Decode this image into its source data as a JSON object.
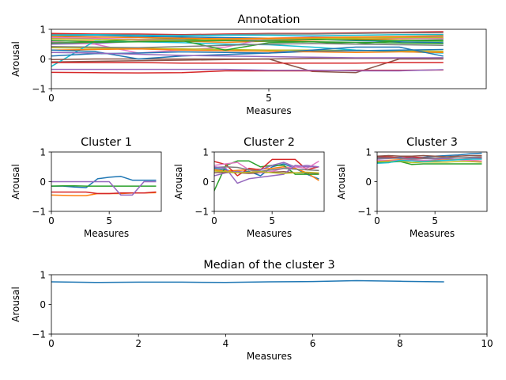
{
  "chart_data": [
    {
      "id": "annotation",
      "type": "line",
      "title": "Annotation",
      "xlabel": "Measures",
      "ylabel": "Arousal",
      "xlim": [
        0,
        10
      ],
      "ylim": [
        -1,
        1
      ],
      "xticks": [
        0,
        5
      ],
      "yticks": [
        -1,
        0,
        1
      ],
      "x": [
        0,
        1,
        2,
        3,
        4,
        5,
        6,
        7,
        8,
        9
      ],
      "series": [
        {
          "color": "#1f77b4",
          "values": [
            0.78,
            0.8,
            0.76,
            0.74,
            0.72,
            0.7,
            0.66,
            0.62,
            0.58,
            0.55
          ]
        },
        {
          "color": "#ff7f0e",
          "values": [
            0.62,
            0.6,
            0.58,
            0.6,
            0.56,
            0.6,
            0.64,
            0.66,
            0.68,
            0.7
          ]
        },
        {
          "color": "#2ca02c",
          "values": [
            0.7,
            0.68,
            0.66,
            0.68,
            0.62,
            0.64,
            0.66,
            0.64,
            0.62,
            0.6
          ]
        },
        {
          "color": "#d62728",
          "values": [
            0.86,
            0.84,
            0.84,
            0.82,
            0.84,
            0.86,
            0.86,
            0.88,
            0.9,
            0.92
          ]
        },
        {
          "color": "#9467bd",
          "values": [
            0.5,
            0.52,
            0.6,
            0.62,
            0.66,
            0.68,
            0.7,
            0.72,
            0.74,
            0.76
          ]
        },
        {
          "color": "#8c564b",
          "values": [
            -0.1,
            -0.08,
            -0.06,
            -0.04,
            -0.02,
            0.0,
            -0.42,
            -0.46,
            0.0,
            0.0
          ]
        },
        {
          "color": "#e377c2",
          "values": [
            0.58,
            0.5,
            0.2,
            0.3,
            0.4,
            0.7,
            0.74,
            0.72,
            0.7,
            0.68
          ]
        },
        {
          "color": "#7f7f7f",
          "values": [
            0.82,
            0.82,
            0.8,
            0.8,
            0.82,
            0.84,
            0.84,
            0.86,
            0.88,
            0.88
          ]
        },
        {
          "color": "#bcbd22",
          "values": [
            0.38,
            0.36,
            0.36,
            0.34,
            0.32,
            0.3,
            0.3,
            0.28,
            0.28,
            0.26
          ]
        },
        {
          "color": "#17becf",
          "values": [
            -0.25,
            0.6,
            0.58,
            0.55,
            0.5,
            0.48,
            0.4,
            0.3,
            0.25,
            0.2
          ]
        },
        {
          "color": "#1f77b4",
          "values": [
            0.1,
            0.18,
            0.2,
            0.24,
            0.22,
            0.2,
            0.26,
            0.28,
            0.3,
            0.32
          ]
        },
        {
          "color": "#ff7f0e",
          "values": [
            0.3,
            0.32,
            0.34,
            0.3,
            0.28,
            0.26,
            0.24,
            0.22,
            0.24,
            0.22
          ]
        },
        {
          "color": "#2ca02c",
          "values": [
            0.62,
            0.58,
            0.66,
            0.62,
            0.3,
            0.55,
            0.58,
            0.5,
            0.62,
            0.64
          ]
        },
        {
          "color": "#d62728",
          "values": [
            -0.45,
            -0.46,
            -0.47,
            -0.46,
            -0.4,
            -0.4,
            -0.4,
            -0.38,
            -0.38,
            -0.37
          ]
        },
        {
          "color": "#9467bd",
          "values": [
            -0.35,
            -0.35,
            -0.35,
            -0.35,
            -0.35,
            -0.38,
            -0.38,
            -0.4,
            -0.4,
            -0.36
          ]
        },
        {
          "color": "#8c564b",
          "values": [
            -0.02,
            0.0,
            0.0,
            0.0,
            0.0,
            0.0,
            0.02,
            0.02,
            0.02,
            0.04
          ]
        },
        {
          "color": "#e377c2",
          "values": [
            0.72,
            0.7,
            0.66,
            0.64,
            0.62,
            0.66,
            0.7,
            0.72,
            0.72,
            0.7
          ]
        },
        {
          "color": "#7f7f7f",
          "values": [
            0.42,
            0.4,
            0.38,
            0.42,
            0.46,
            0.5,
            0.52,
            0.5,
            0.48,
            0.46
          ]
        },
        {
          "color": "#bcbd22",
          "values": [
            0.68,
            0.66,
            0.64,
            0.62,
            0.66,
            0.68,
            0.7,
            0.7,
            0.72,
            0.72
          ]
        },
        {
          "color": "#17becf",
          "values": [
            0.8,
            0.82,
            0.8,
            0.78,
            0.8,
            0.8,
            0.78,
            0.8,
            0.82,
            0.82
          ]
        },
        {
          "color": "#1f77b4",
          "values": [
            0.3,
            0.25,
            0.0,
            0.1,
            0.15,
            0.2,
            0.3,
            0.4,
            0.4,
            0.1
          ]
        },
        {
          "color": "#ff7f0e",
          "values": [
            0.76,
            0.74,
            0.72,
            0.7,
            0.68,
            0.7,
            0.72,
            0.74,
            0.76,
            0.78
          ]
        },
        {
          "color": "#2ca02c",
          "values": [
            0.54,
            0.56,
            0.58,
            0.6,
            0.62,
            0.6,
            0.58,
            0.56,
            0.54,
            0.52
          ]
        },
        {
          "color": "#d62728",
          "values": [
            -0.12,
            -0.12,
            -0.12,
            -0.14,
            -0.14,
            -0.14,
            -0.14,
            -0.14,
            -0.12,
            -0.12
          ]
        },
        {
          "color": "#9467bd",
          "values": [
            0.22,
            0.2,
            0.16,
            0.12,
            0.1,
            0.08,
            0.06,
            0.04,
            0.04,
            0.04
          ]
        }
      ]
    },
    {
      "id": "cluster1",
      "type": "line",
      "title": "Cluster 1",
      "xlabel": "Measures",
      "ylabel": "Arousal",
      "xlim": [
        0,
        9.5
      ],
      "ylim": [
        -1,
        1
      ],
      "xticks": [
        0,
        5
      ],
      "yticks": [
        -1,
        0,
        1
      ],
      "x": [
        0,
        1,
        2,
        3,
        4,
        5,
        6,
        7,
        8,
        9
      ],
      "series": [
        {
          "color": "#1f77b4",
          "values": [
            -0.15,
            -0.15,
            -0.18,
            -0.2,
            0.1,
            0.15,
            0.18,
            0.05,
            0.05,
            0.05
          ]
        },
        {
          "color": "#ff7f0e",
          "values": [
            -0.45,
            -0.46,
            -0.47,
            -0.47,
            -0.4,
            -0.4,
            -0.4,
            -0.38,
            -0.38,
            -0.37
          ]
        },
        {
          "color": "#2ca02c",
          "values": [
            -0.15,
            -0.14,
            -0.14,
            -0.15,
            -0.15,
            -0.15,
            -0.15,
            -0.15,
            -0.15,
            -0.15
          ]
        },
        {
          "color": "#d62728",
          "values": [
            -0.35,
            -0.35,
            -0.35,
            -0.35,
            -0.4,
            -0.4,
            -0.38,
            -0.38,
            -0.38,
            -0.35
          ]
        },
        {
          "color": "#9467bd",
          "values": [
            0.0,
            0.0,
            0.0,
            0.0,
            0.0,
            0.0,
            -0.45,
            -0.45,
            0.0,
            0.0
          ]
        }
      ]
    },
    {
      "id": "cluster2",
      "type": "line",
      "title": "Cluster 2",
      "xlabel": "Measures",
      "ylabel": "Arousal",
      "xlim": [
        0,
        9.5
      ],
      "ylim": [
        -1,
        1
      ],
      "xticks": [
        0,
        5
      ],
      "yticks": [
        -1,
        0,
        1
      ],
      "x": [
        0,
        1,
        2,
        3,
        4,
        5,
        6,
        7,
        8,
        9
      ],
      "series": [
        {
          "color": "#1f77b4",
          "values": [
            0.45,
            0.4,
            0.3,
            0.35,
            0.2,
            0.5,
            0.6,
            0.45,
            0.25,
            0.1
          ]
        },
        {
          "color": "#ff7f0e",
          "values": [
            0.4,
            0.36,
            0.38,
            0.4,
            0.42,
            0.45,
            0.5,
            0.45,
            0.3,
            0.05
          ]
        },
        {
          "color": "#2ca02c",
          "values": [
            -0.3,
            0.55,
            0.7,
            0.7,
            0.5,
            0.55,
            0.55,
            0.25,
            0.25,
            0.25
          ]
        },
        {
          "color": "#d62728",
          "values": [
            0.68,
            0.58,
            0.2,
            0.45,
            0.4,
            0.75,
            0.75,
            0.75,
            0.4,
            0.5
          ]
        },
        {
          "color": "#9467bd",
          "values": [
            0.2,
            0.3,
            0.35,
            0.3,
            0.4,
            0.55,
            0.65,
            0.5,
            0.55,
            0.5
          ]
        },
        {
          "color": "#8c564b",
          "values": [
            0.3,
            0.32,
            0.3,
            0.28,
            0.3,
            0.32,
            0.34,
            0.3,
            0.3,
            0.28
          ]
        },
        {
          "color": "#e377c2",
          "values": [
            0.55,
            0.6,
            0.65,
            0.4,
            0.3,
            0.35,
            0.45,
            0.5,
            0.45,
            0.68
          ]
        },
        {
          "color": "#7f7f7f",
          "values": [
            0.48,
            0.5,
            0.48,
            0.4,
            0.35,
            0.4,
            0.45,
            0.42,
            0.4,
            0.38
          ]
        },
        {
          "color": "#9467bd",
          "values": [
            0.5,
            0.45,
            -0.05,
            0.1,
            0.15,
            0.2,
            0.25,
            0.55,
            0.5,
            0.5
          ]
        },
        {
          "color": "#bcbd22",
          "values": [
            0.36,
            0.34,
            0.3,
            0.32,
            0.34,
            0.3,
            0.28,
            0.3,
            0.32,
            0.3
          ]
        }
      ]
    },
    {
      "id": "cluster3",
      "type": "line",
      "title": "Cluster 3",
      "xlabel": "Measures",
      "ylabel": "Arousal",
      "xlim": [
        0,
        9.5
      ],
      "ylim": [
        -1,
        1
      ],
      "xticks": [
        0,
        5
      ],
      "yticks": [
        -1,
        0,
        1
      ],
      "x": [
        0,
        1,
        2,
        3,
        4,
        5,
        6,
        7,
        8,
        9
      ],
      "series": [
        {
          "color": "#1f77b4",
          "values": [
            0.8,
            0.82,
            0.82,
            0.8,
            0.82,
            0.86,
            0.88,
            0.9,
            0.94,
            0.96
          ]
        },
        {
          "color": "#ff7f0e",
          "values": [
            0.7,
            0.72,
            0.74,
            0.72,
            0.7,
            0.72,
            0.74,
            0.74,
            0.72,
            0.7
          ]
        },
        {
          "color": "#2ca02c",
          "values": [
            0.66,
            0.66,
            0.68,
            0.58,
            0.6,
            0.6,
            0.6,
            0.6,
            0.6,
            0.6
          ]
        },
        {
          "color": "#d62728",
          "values": [
            0.84,
            0.84,
            0.8,
            0.84,
            0.8,
            0.8,
            0.78,
            0.8,
            0.8,
            0.8
          ]
        },
        {
          "color": "#9467bd",
          "values": [
            0.76,
            0.78,
            0.8,
            0.78,
            0.78,
            0.76,
            0.78,
            0.8,
            0.8,
            0.78
          ]
        },
        {
          "color": "#8c564b",
          "values": [
            0.86,
            0.88,
            0.86,
            0.86,
            0.88,
            0.86,
            0.84,
            0.86,
            0.88,
            0.88
          ]
        },
        {
          "color": "#e377c2",
          "values": [
            0.72,
            0.7,
            0.72,
            0.74,
            0.72,
            0.7,
            0.72,
            0.74,
            0.72,
            0.7
          ]
        },
        {
          "color": "#7f7f7f",
          "values": [
            0.78,
            0.8,
            0.78,
            0.76,
            0.78,
            0.8,
            0.82,
            0.8,
            0.82,
            0.84
          ]
        },
        {
          "color": "#bcbd22",
          "values": [
            0.68,
            0.68,
            0.7,
            0.64,
            0.66,
            0.66,
            0.66,
            0.68,
            0.68,
            0.66
          ]
        },
        {
          "color": "#17becf",
          "values": [
            0.62,
            0.64,
            0.72,
            0.7,
            0.68,
            0.7,
            0.72,
            0.74,
            0.76,
            0.76
          ]
        }
      ]
    },
    {
      "id": "median3",
      "type": "line",
      "title": "Median of the cluster 3",
      "xlabel": "Measures",
      "ylabel": "Arousal",
      "xlim": [
        0,
        10
      ],
      "ylim": [
        -1,
        1
      ],
      "xticks": [
        0,
        2,
        4,
        6,
        8,
        10
      ],
      "yticks": [
        -1,
        0,
        1
      ],
      "x": [
        0,
        1,
        2,
        3,
        4,
        5,
        6,
        7,
        8,
        9
      ],
      "series": [
        {
          "color": "#1f77b4",
          "values": [
            0.76,
            0.74,
            0.75,
            0.75,
            0.74,
            0.76,
            0.77,
            0.8,
            0.78,
            0.76
          ]
        }
      ]
    }
  ]
}
